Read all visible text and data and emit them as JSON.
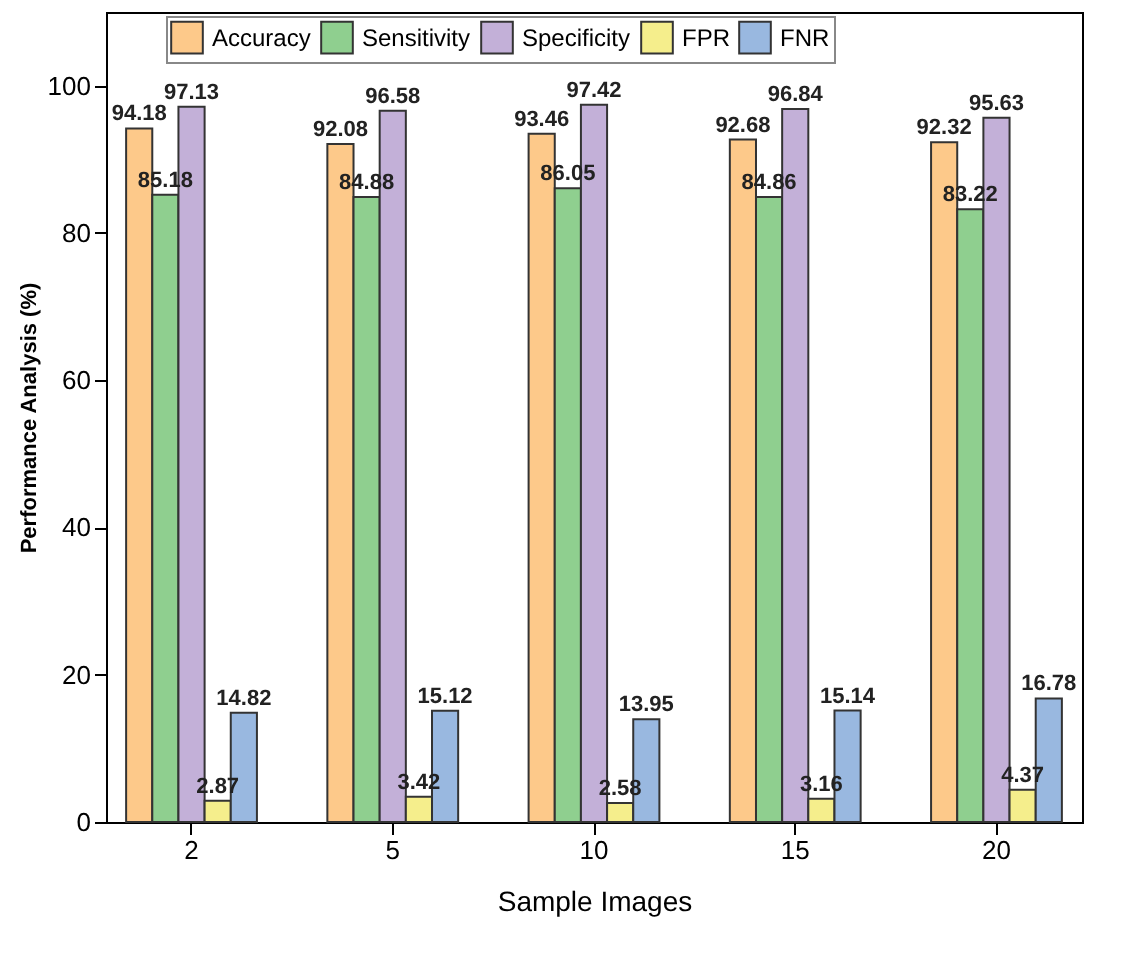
{
  "chart_data": {
    "type": "bar",
    "xlabel": "Sample Images",
    "ylabel": "Performance Analysis (%)",
    "categories": [
      "2",
      "5",
      "10",
      "15",
      "20"
    ],
    "series": [
      {
        "name": "Accuracy",
        "color": "#fdc98a",
        "values": [
          94.18,
          92.08,
          93.46,
          92.68,
          92.32
        ]
      },
      {
        "name": "Sensitivity",
        "color": "#8fcf8f",
        "values": [
          85.18,
          84.88,
          86.05,
          84.86,
          83.22
        ]
      },
      {
        "name": "Specificity",
        "color": "#c3b0d8",
        "values": [
          97.13,
          96.58,
          97.42,
          96.84,
          95.63
        ]
      },
      {
        "name": "FPR",
        "color": "#f5ee8c",
        "values": [
          2.87,
          3.42,
          2.58,
          3.16,
          4.37
        ]
      },
      {
        "name": "FNR",
        "color": "#99b8e0",
        "values": [
          14.82,
          15.12,
          13.95,
          15.14,
          16.78
        ]
      }
    ],
    "ylim": [
      0,
      110
    ],
    "yticks": [
      0,
      20,
      40,
      60,
      80,
      100
    ],
    "grid": false,
    "legend": "top",
    "data_labels": true
  }
}
